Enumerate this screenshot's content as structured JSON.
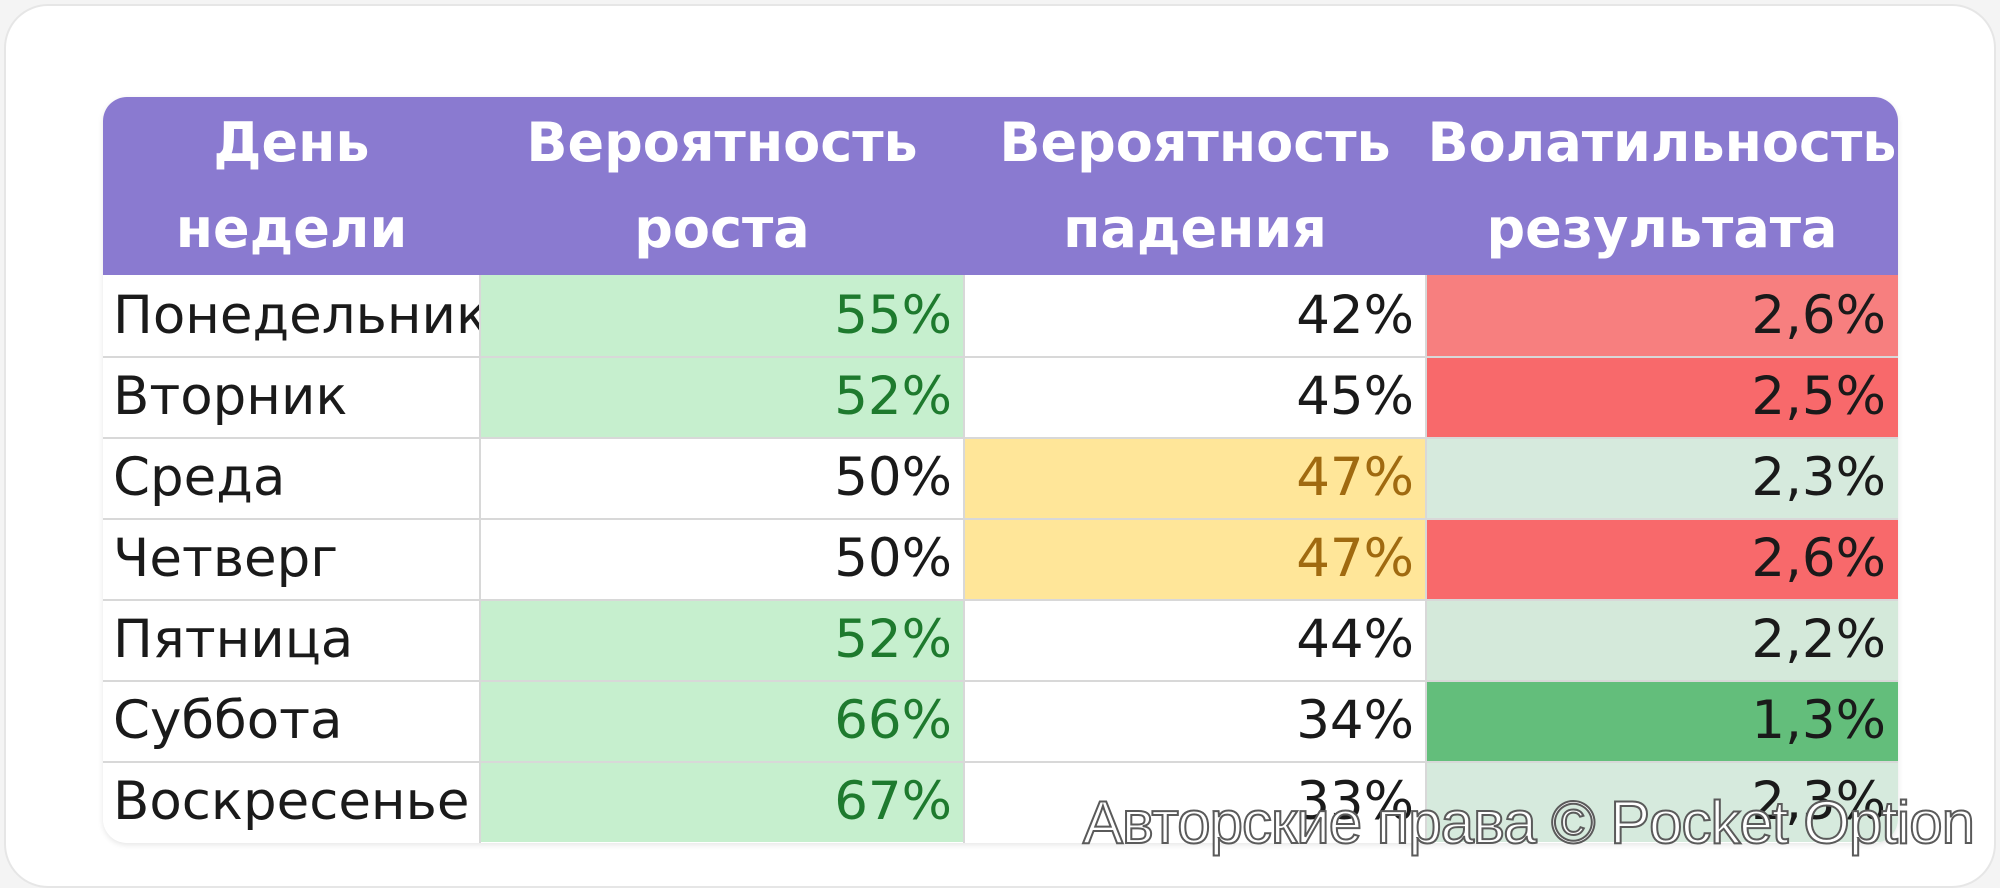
{
  "headers": [
    [
      "День",
      "недели"
    ],
    [
      "Вероятность",
      "роста"
    ],
    [
      "Вероятность",
      "падения"
    ],
    [
      "Волатильность",
      "результата"
    ]
  ],
  "rows": [
    {
      "day": "Понедельник",
      "rise": "55%",
      "fall": "42%",
      "vol": "2,6%"
    },
    {
      "day": "Вторник",
      "rise": "52%",
      "fall": "45%",
      "vol": "2,5%"
    },
    {
      "day": "Среда",
      "rise": "50%",
      "fall": "47%",
      "vol": "2,3%"
    },
    {
      "day": "Четверг",
      "rise": "50%",
      "fall": "47%",
      "vol": "2,6%"
    },
    {
      "day": "Пятница",
      "rise": "52%",
      "fall": "44%",
      "vol": "2,2%"
    },
    {
      "day": "Суббота",
      "rise": "66%",
      "fall": "34%",
      "vol": "1,3%"
    },
    {
      "day": "Воскресенье",
      "rise": "67%",
      "fall": "33%",
      "vol": "2,3%"
    }
  ],
  "cell_styles": {
    "rise": [
      {
        "bg": "#c6efce",
        "fg": "#1e7a2e"
      },
      {
        "bg": "#c6efce",
        "fg": "#1e7a2e"
      },
      {
        "bg": "#ffffff",
        "fg": "#1a1a1a"
      },
      {
        "bg": "#ffffff",
        "fg": "#1a1a1a"
      },
      {
        "bg": "#c6efce",
        "fg": "#1e7a2e"
      },
      {
        "bg": "#c6efce",
        "fg": "#1e7a2e"
      },
      {
        "bg": "#c6efce",
        "fg": "#1e7a2e"
      }
    ],
    "fall": [
      {
        "bg": "#ffffff",
        "fg": "#1a1a1a"
      },
      {
        "bg": "#ffffff",
        "fg": "#1a1a1a"
      },
      {
        "bg": "#ffe699",
        "fg": "#a06a10"
      },
      {
        "bg": "#ffe699",
        "fg": "#a06a10"
      },
      {
        "bg": "#ffffff",
        "fg": "#1a1a1a"
      },
      {
        "bg": "#ffffff",
        "fg": "#1a1a1a"
      },
      {
        "bg": "#ffffff",
        "fg": "#1a1a1a"
      }
    ],
    "vol": [
      {
        "bg": "#f77f7f",
        "fg": "#1a1a1a"
      },
      {
        "bg": "#f8696b",
        "fg": "#1a1a1a"
      },
      {
        "bg": "#d6eadd",
        "fg": "#1a1a1a"
      },
      {
        "bg": "#f8696b",
        "fg": "#1a1a1a"
      },
      {
        "bg": "#d4e9da",
        "fg": "#1a1a1a"
      },
      {
        "bg": "#63be7b",
        "fg": "#1a1a1a"
      },
      {
        "bg": "#d6eadd",
        "fg": "#1a1a1a"
      }
    ]
  },
  "header_color": "#8a7ad0",
  "watermark": "Авторские права © Pocket Option"
}
